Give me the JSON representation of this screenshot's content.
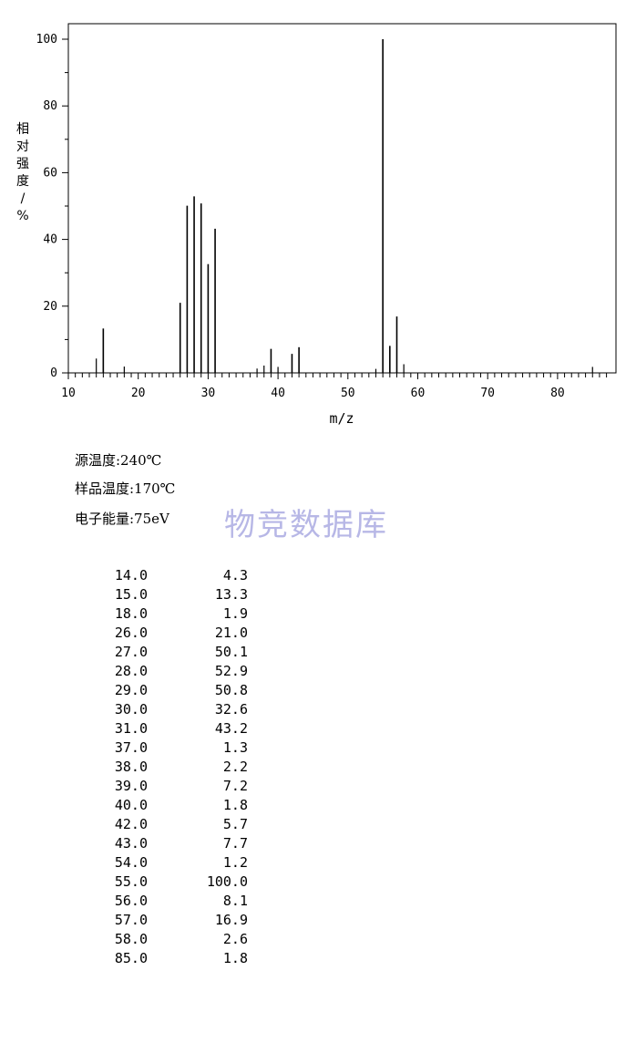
{
  "chart_data": {
    "type": "bar",
    "xlabel": "m/z",
    "ylabel": "相对强度/%",
    "xlim": [
      10,
      88
    ],
    "ylim": [
      0,
      105
    ],
    "xticks": [
      10,
      20,
      30,
      40,
      50,
      60,
      70,
      80
    ],
    "yticks": [
      0,
      20,
      40,
      60,
      80,
      100
    ],
    "grid": false,
    "x": [
      14.0,
      15.0,
      18.0,
      26.0,
      27.0,
      28.0,
      29.0,
      30.0,
      31.0,
      37.0,
      38.0,
      39.0,
      40.0,
      42.0,
      43.0,
      54.0,
      55.0,
      56.0,
      57.0,
      58.0,
      85.0
    ],
    "values": [
      4.3,
      13.3,
      1.9,
      21.0,
      50.1,
      52.9,
      50.8,
      32.6,
      43.2,
      1.3,
      2.2,
      7.2,
      1.8,
      5.7,
      7.7,
      1.2,
      100.0,
      8.1,
      16.9,
      2.6,
      1.8
    ]
  },
  "conditions": {
    "source_temp": "源温度:240℃",
    "sample_temp": "样品温度:170℃",
    "electron_energy": "电子能量:75eV"
  },
  "watermark": "物竞数据库",
  "peak_table": {
    "mz": [
      "14.0",
      "15.0",
      "18.0",
      "26.0",
      "27.0",
      "28.0",
      "29.0",
      "30.0",
      "31.0",
      "37.0",
      "38.0",
      "39.0",
      "40.0",
      "42.0",
      "43.0",
      "54.0",
      "55.0",
      "56.0",
      "57.0",
      "58.0",
      "85.0"
    ],
    "abundance": [
      "4.3",
      "13.3",
      "1.9",
      "21.0",
      "50.1",
      "52.9",
      "50.8",
      "32.6",
      "43.2",
      "1.3",
      "2.2",
      "7.2",
      "1.8",
      "5.7",
      "7.7",
      "1.2",
      "100.0",
      "8.1",
      "16.9",
      "2.6",
      "1.8"
    ]
  }
}
